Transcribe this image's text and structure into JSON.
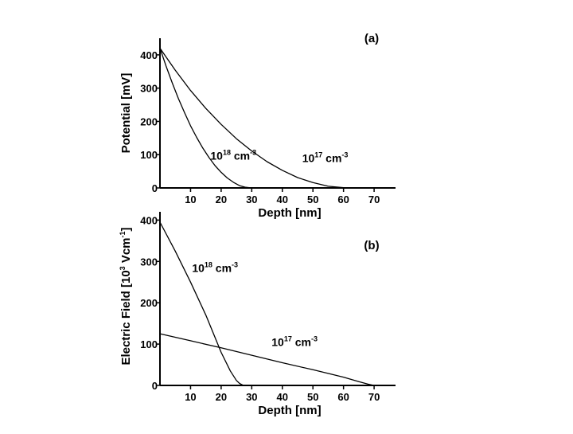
{
  "chart_data": [
    {
      "type": "line",
      "panel_label": "(a)",
      "xlabel": "Depth [nm]",
      "ylabel": "Potential [mV]",
      "xlim": [
        0,
        77
      ],
      "ylim": [
        0,
        450
      ],
      "xticks": [
        10,
        20,
        30,
        40,
        50,
        60,
        70
      ],
      "yticks": [
        0,
        100,
        200,
        300,
        400
      ],
      "grid": false,
      "series": [
        {
          "annotation": {
            "base": "10",
            "exp": "18",
            "unit": " cm",
            "unit_exp": "-3"
          },
          "x": [
            0,
            2,
            4,
            6,
            8,
            10,
            12,
            14,
            16,
            18,
            20,
            22,
            24,
            26,
            28,
            30
          ],
          "y": [
            420,
            366,
            316,
            269,
            227,
            187,
            152,
            120,
            92,
            67,
            47,
            30,
            17,
            7,
            2,
            0
          ]
        },
        {
          "annotation": {
            "base": "10",
            "exp": "17",
            "unit": " cm",
            "unit_exp": "-3"
          },
          "x": [
            0,
            5,
            10,
            15,
            20,
            25,
            30,
            35,
            40,
            45,
            50,
            55,
            60,
            62
          ],
          "y": [
            420,
            354,
            293,
            239,
            191,
            148,
            111,
            79,
            53,
            31,
            16,
            5,
            1,
            0
          ]
        }
      ],
      "annotations": [
        {
          "series_index": 0,
          "at_x": 24,
          "at_y": 85
        },
        {
          "series_index": 1,
          "at_x": 54,
          "at_y": 78
        }
      ]
    },
    {
      "type": "line",
      "panel_label": "(b)",
      "xlabel": "Depth [nm]",
      "ylabel": {
        "base": "Electric Field [10",
        "exp": "3",
        "mid": " Vcm",
        "exp2": "-1",
        "end": "]"
      },
      "xlim": [
        0,
        77
      ],
      "ylim": [
        0,
        420
      ],
      "xticks": [
        10,
        20,
        30,
        40,
        50,
        60,
        70
      ],
      "yticks": [
        0,
        100,
        200,
        300,
        400
      ],
      "grid": false,
      "series": [
        {
          "annotation": {
            "base": "10",
            "exp": "18",
            "unit": " cm",
            "unit_exp": "-3"
          },
          "x": [
            0,
            5,
            10,
            15,
            20,
            23,
            25,
            26,
            27,
            28
          ],
          "y": [
            395,
            325,
            250,
            170,
            80,
            35,
            12,
            5,
            1,
            0
          ]
        },
        {
          "annotation": {
            "base": "10",
            "exp": "17",
            "unit": " cm",
            "unit_exp": "-3"
          },
          "x": [
            0,
            10,
            20,
            30,
            40,
            50,
            60,
            65,
            68,
            70
          ],
          "y": [
            125,
            108,
            91,
            73,
            55,
            38,
            20,
            9,
            3,
            0
          ]
        }
      ],
      "annotations": [
        {
          "series_index": 0,
          "at_x": 18,
          "at_y": 275
        },
        {
          "series_index": 1,
          "at_x": 44,
          "at_y": 95
        }
      ]
    }
  ]
}
